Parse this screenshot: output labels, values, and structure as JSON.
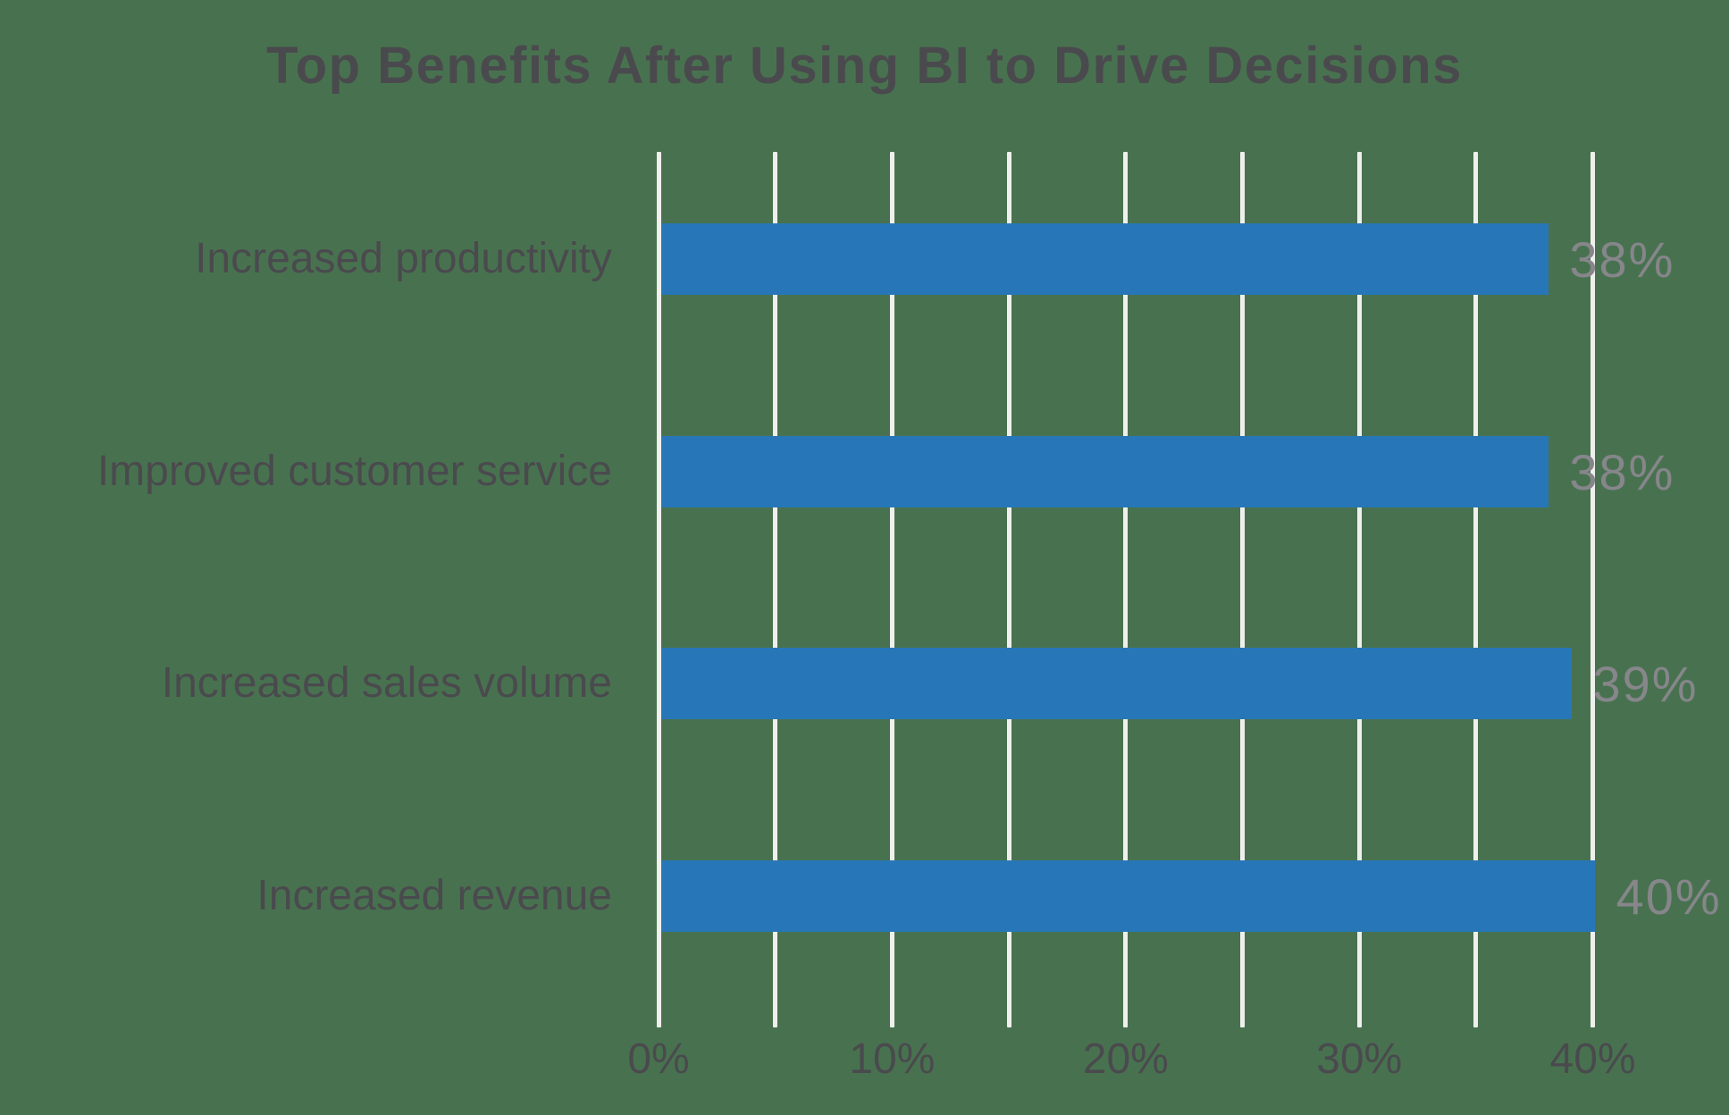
{
  "background_color": "#48724F",
  "chart_data": {
    "type": "bar",
    "orientation": "horizontal",
    "title": "Top Benefits After Using BI to Drive Decisions",
    "categories": [
      "Increased productivity",
      "Improved customer service",
      "Increased sales volume",
      "Increased revenue"
    ],
    "values": [
      38,
      38,
      39,
      40
    ],
    "value_labels": [
      "38%",
      "38%",
      "39%",
      "40%"
    ],
    "xlabel": "",
    "ylabel": "",
    "xlim": [
      0,
      40
    ],
    "x_ticks": [
      0,
      10,
      20,
      30,
      40
    ],
    "x_tick_labels": [
      "0%",
      "10%",
      "20%",
      "30%",
      "40%"
    ],
    "gridline_step_pct": 5,
    "grid": true,
    "legend": false,
    "bar_color": "#2777B8",
    "gridline_color": "#EFF0ED",
    "text_color": "#4A4A4E",
    "value_label_color": "#86868B"
  }
}
